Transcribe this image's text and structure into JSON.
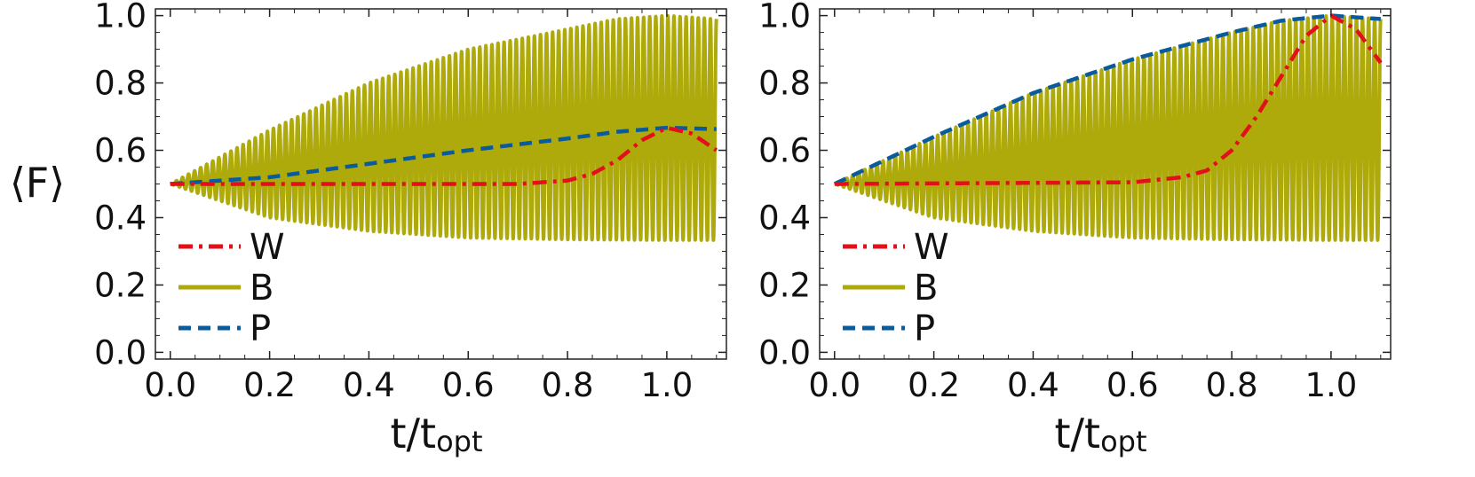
{
  "figure": {
    "ylabel": "⟨F⟩",
    "xlabel_main": "t/t",
    "xlabel_sub": "opt"
  },
  "legend": [
    {
      "label": "W",
      "color": "#e3101c",
      "dash": "dashdot"
    },
    {
      "label": "B",
      "color": "#aeaa0b",
      "dash": "solid"
    },
    {
      "label": "P",
      "color": "#0a5b9c",
      "dash": "dashed"
    }
  ],
  "chart_data": [
    {
      "type": "line",
      "panel": "left",
      "xlim": [
        -0.03,
        1.12
      ],
      "ylim": [
        -0.02,
        1.02
      ],
      "xticks": [
        "0.0",
        "0.2",
        "0.4",
        "0.6",
        "0.8",
        "1.0"
      ],
      "yticks": [
        "0.0",
        "0.2",
        "0.4",
        "0.6",
        "0.8",
        "1.0"
      ],
      "grid": false,
      "legend_position": "lower-left",
      "series": [
        {
          "name": "W",
          "x": [
            0.0,
            0.7,
            0.8,
            0.85,
            0.9,
            0.95,
            1.0,
            1.05,
            1.1
          ],
          "y": [
            0.5,
            0.5,
            0.51,
            0.53,
            0.57,
            0.63,
            0.667,
            0.65,
            0.6
          ]
        },
        {
          "name": "B",
          "type": "oscillation",
          "x_range": [
            0.0,
            1.1
          ],
          "periods": 90,
          "upper_envelope": {
            "x": [
              0.0,
              0.2,
              0.4,
              0.6,
              0.8,
              0.9,
              1.0,
              1.1
            ],
            "y": [
              0.5,
              0.66,
              0.8,
              0.9,
              0.96,
              0.99,
              1.0,
              0.99
            ]
          },
          "lower_envelope": {
            "x": [
              0.0,
              0.2,
              0.4,
              0.6,
              0.8,
              1.0,
              1.1
            ],
            "y": [
              0.5,
              0.4,
              0.36,
              0.34,
              0.335,
              0.333,
              0.333
            ]
          }
        },
        {
          "name": "P",
          "x": [
            0.0,
            0.2,
            0.4,
            0.6,
            0.8,
            0.9,
            1.0,
            1.1
          ],
          "y": [
            0.5,
            0.52,
            0.56,
            0.6,
            0.635,
            0.655,
            0.667,
            0.663
          ]
        }
      ]
    },
    {
      "type": "line",
      "panel": "right",
      "xlim": [
        -0.03,
        1.12
      ],
      "ylim": [
        -0.02,
        1.02
      ],
      "xticks": [
        "0.0",
        "0.2",
        "0.4",
        "0.6",
        "0.8",
        "1.0"
      ],
      "yticks": [
        "0.0",
        "0.2",
        "0.4",
        "0.6",
        "0.8",
        "1.0"
      ],
      "grid": false,
      "legend_position": "lower-left",
      "series": [
        {
          "name": "W",
          "x": [
            0.0,
            0.6,
            0.7,
            0.75,
            0.8,
            0.85,
            0.9,
            0.95,
            1.0,
            1.05,
            1.1
          ],
          "y": [
            0.5,
            0.505,
            0.52,
            0.54,
            0.6,
            0.7,
            0.82,
            0.94,
            1.0,
            0.96,
            0.86
          ]
        },
        {
          "name": "B",
          "type": "oscillation",
          "x_range": [
            0.0,
            1.1
          ],
          "periods": 90,
          "upper_envelope": {
            "x": [
              0.0,
              0.2,
              0.4,
              0.6,
              0.8,
              0.9,
              1.0,
              1.1
            ],
            "y": [
              0.5,
              0.64,
              0.77,
              0.87,
              0.95,
              0.985,
              1.0,
              0.99
            ]
          },
          "lower_envelope": {
            "x": [
              0.0,
              0.2,
              0.4,
              0.6,
              0.8,
              1.0,
              1.1
            ],
            "y": [
              0.5,
              0.4,
              0.36,
              0.34,
              0.335,
              0.333,
              0.333
            ]
          }
        },
        {
          "name": "P",
          "x": [
            0.0,
            0.2,
            0.4,
            0.6,
            0.8,
            0.9,
            1.0,
            1.1
          ],
          "y": [
            0.5,
            0.64,
            0.77,
            0.87,
            0.95,
            0.985,
            1.0,
            0.99
          ]
        }
      ]
    }
  ]
}
